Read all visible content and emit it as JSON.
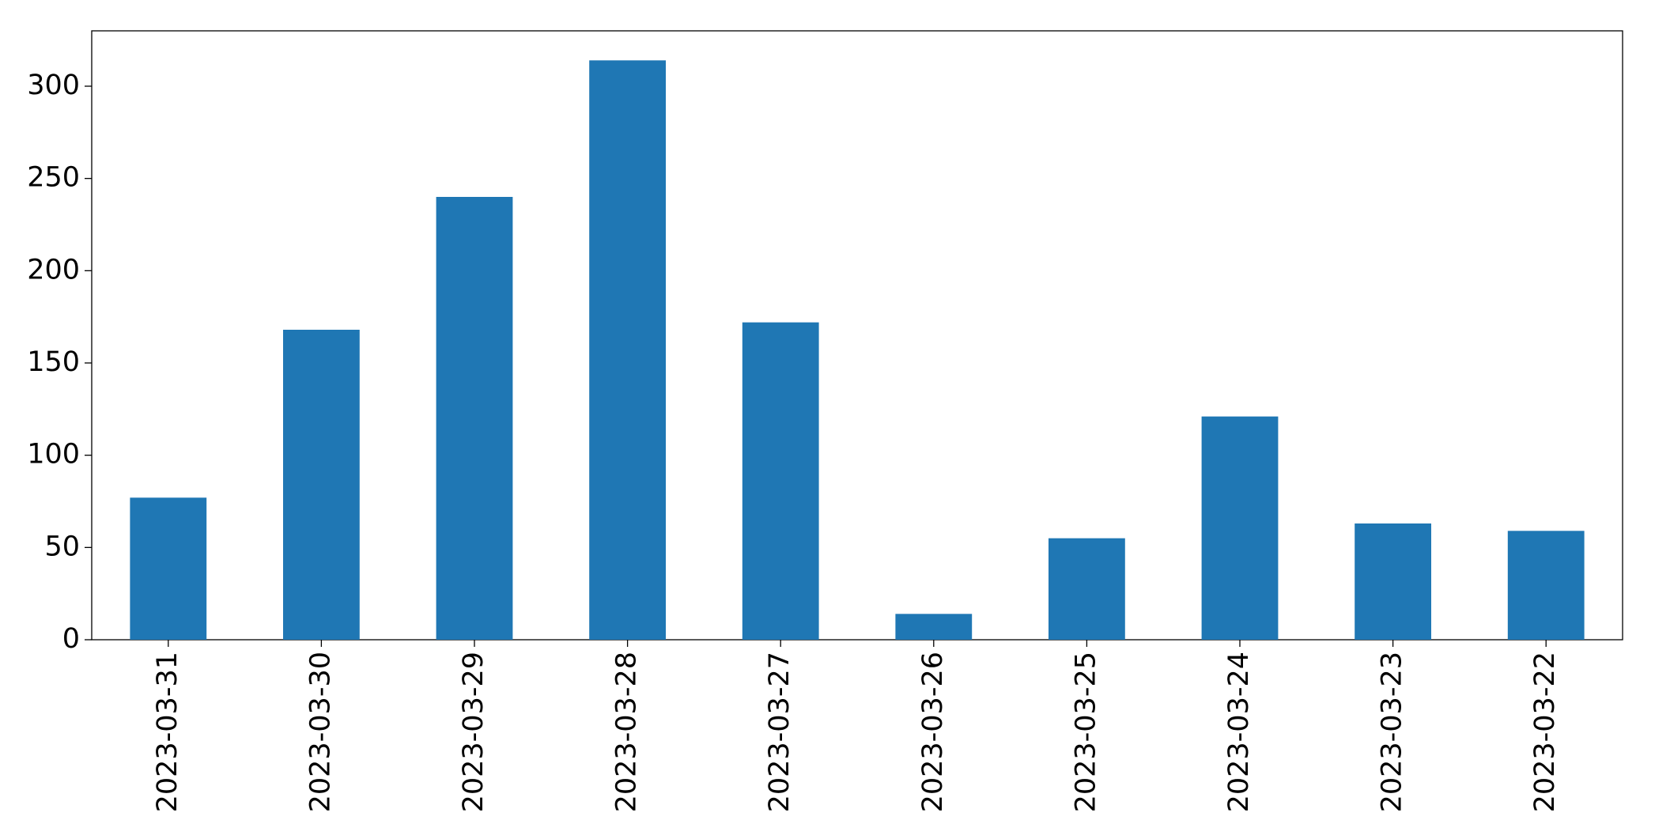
{
  "chart_data": {
    "type": "bar",
    "categories": [
      "2023-03-31",
      "2023-03-30",
      "2023-03-29",
      "2023-03-28",
      "2023-03-27",
      "2023-03-26",
      "2023-03-25",
      "2023-03-24",
      "2023-03-23",
      "2023-03-22"
    ],
    "values": [
      77,
      168,
      240,
      314,
      172,
      14,
      55,
      121,
      63,
      59
    ],
    "color": "#1f77b4",
    "ylim": [
      0,
      330
    ],
    "yticks": [
      0,
      50,
      100,
      150,
      200,
      250,
      300
    ],
    "grid": false
  }
}
